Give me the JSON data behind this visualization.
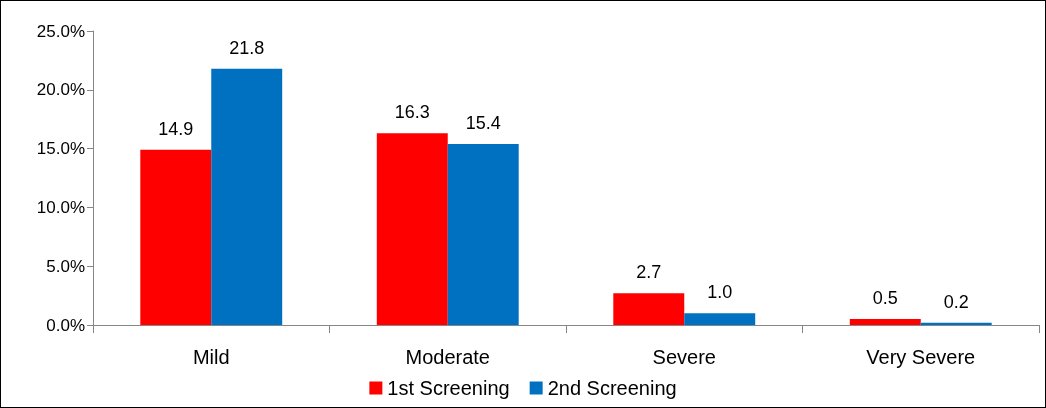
{
  "chart_data": {
    "type": "bar",
    "categories": [
      "Mild",
      "Moderate",
      "Severe",
      "Very Severe"
    ],
    "series": [
      {
        "name": "1st Screening",
        "color": "#ff0000",
        "values": [
          14.9,
          16.3,
          2.7,
          0.5
        ],
        "value_labels": [
          "14.9",
          "16.3",
          "2.7",
          "0.5"
        ]
      },
      {
        "name": "2nd Screening",
        "color": "#0070c0",
        "values": [
          21.8,
          15.4,
          1.0,
          0.2
        ],
        "value_labels": [
          "21.8",
          "15.4",
          "1.0",
          "0.2"
        ]
      }
    ],
    "ylim": [
      0,
      25
    ],
    "yticks": [
      {
        "value": 0,
        "label": "0.0%"
      },
      {
        "value": 5,
        "label": "5.0%"
      },
      {
        "value": 10,
        "label": "10.0%"
      },
      {
        "value": 15,
        "label": "15.0%"
      },
      {
        "value": 20,
        "label": "20.0%"
      },
      {
        "value": 25,
        "label": "25.0%"
      }
    ],
    "grid": false,
    "legend": "bottom"
  }
}
